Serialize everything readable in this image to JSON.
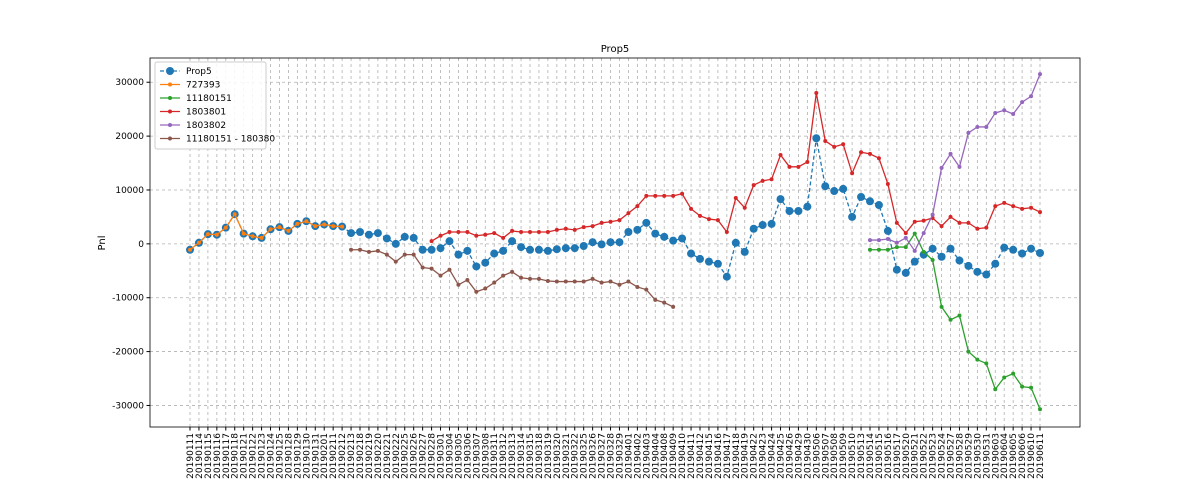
{
  "chart_data": {
    "type": "line",
    "title": "Prop5",
    "y_label": "Pnl",
    "categories": [
      "20190111",
      "20190114",
      "20190115",
      "20190116",
      "20190117",
      "20190118",
      "20190121",
      "20190122",
      "20190123",
      "20190124",
      "20190125",
      "20190128",
      "20190129",
      "20190130",
      "20190131",
      "20190201",
      "20190211",
      "20190212",
      "20190213",
      "20190218",
      "20190219",
      "20190220",
      "20190221",
      "20190222",
      "20190225",
      "20190226",
      "20190227",
      "20190228",
      "20190301",
      "20190304",
      "20190305",
      "20190306",
      "20190307",
      "20190308",
      "20190311",
      "20190312",
      "20190313",
      "20190314",
      "20190315",
      "20190318",
      "20190319",
      "20190320",
      "20190321",
      "20190322",
      "20190325",
      "20190326",
      "20190327",
      "20190328",
      "20190329",
      "20190401",
      "20190402",
      "20190403",
      "20190404",
      "20190408",
      "20190409",
      "20190410",
      "20190411",
      "20190412",
      "20190415",
      "20190416",
      "20190417",
      "20190418",
      "20190419",
      "20190422",
      "20190423",
      "20190424",
      "20190425",
      "20190426",
      "20190429",
      "20190430",
      "20190506",
      "20190507",
      "20190508",
      "20190509",
      "20190510",
      "20190513",
      "20190514",
      "20190515",
      "20190516",
      "20190517",
      "20190520",
      "20190521",
      "20190522",
      "20190523",
      "20190524",
      "20190527",
      "20190528",
      "20190529",
      "20190530",
      "20190531",
      "20190603",
      "20190604",
      "20190605",
      "20190606",
      "20190610",
      "20190611"
    ],
    "series": [
      {
        "name": "Prop5",
        "color": "#1f77b4",
        "style": "dashed",
        "marker": "large",
        "values": [
          -1100,
          200,
          1800,
          1700,
          3000,
          5500,
          1900,
          1400,
          1100,
          2700,
          3100,
          2400,
          3700,
          4200,
          3300,
          3600,
          3300,
          3200,
          2000,
          2200,
          1700,
          2000,
          1000,
          0,
          1300,
          1100,
          -1100,
          -1100,
          -800,
          500,
          -2000,
          -1300,
          -4200,
          -3500,
          -1800,
          -1300,
          500,
          -600,
          -1100,
          -1100,
          -1300,
          -1000,
          -800,
          -800,
          -400,
          300,
          -100,
          300,
          300,
          2200,
          2600,
          3900,
          1900,
          1300,
          600,
          1000,
          -1800,
          -2800,
          -3300,
          -3700,
          -6100,
          200,
          -1500,
          2800,
          3500,
          3700,
          8300,
          6100,
          6100,
          6900,
          19600,
          10700,
          9800,
          10200,
          5000,
          8700,
          7900,
          7200,
          2400,
          -4800,
          -5400,
          -3300,
          -2000,
          -900,
          -2400,
          -900,
          -3100,
          -4100,
          -5200,
          -5700,
          -3700,
          -700,
          -1100,
          -1800,
          -900,
          -1700
        ]
      },
      {
        "name": "727393",
        "color": "#ff7f0e",
        "style": "solid",
        "marker": "small",
        "values": [
          -1100,
          200,
          1800,
          1700,
          3000,
          5500,
          1900,
          1400,
          1100,
          2700,
          3100,
          2400,
          3700,
          4200,
          3300,
          3600,
          3300,
          3200,
          null,
          null,
          null,
          null,
          null,
          null,
          null,
          null,
          null,
          null,
          null,
          null,
          null,
          null,
          null,
          null,
          null,
          null,
          null,
          null,
          null,
          null,
          null,
          null,
          null,
          null,
          null,
          null,
          null,
          null,
          null,
          null,
          null,
          null,
          null,
          null,
          null,
          null,
          null,
          null,
          null,
          null,
          null,
          null,
          null,
          null,
          null,
          null,
          null,
          null,
          null,
          null,
          null,
          null,
          null,
          null,
          null,
          null,
          null,
          null,
          null,
          null,
          null,
          null,
          null,
          null,
          null,
          null,
          null,
          null,
          null,
          null,
          null,
          null,
          null,
          null,
          null,
          null
        ]
      },
      {
        "name": "11180151",
        "color": "#2ca02c",
        "style": "solid",
        "marker": "small",
        "values": [
          null,
          null,
          null,
          null,
          null,
          null,
          null,
          null,
          null,
          null,
          null,
          null,
          null,
          null,
          null,
          null,
          null,
          null,
          null,
          null,
          null,
          null,
          null,
          null,
          null,
          null,
          null,
          null,
          null,
          null,
          null,
          null,
          null,
          null,
          null,
          null,
          null,
          null,
          null,
          null,
          null,
          null,
          null,
          null,
          null,
          null,
          null,
          null,
          null,
          null,
          null,
          null,
          null,
          null,
          null,
          null,
          null,
          null,
          null,
          null,
          null,
          null,
          null,
          null,
          null,
          null,
          null,
          null,
          null,
          null,
          null,
          null,
          null,
          null,
          null,
          null,
          -1100,
          -1100,
          -1100,
          -600,
          -600,
          1900,
          -1500,
          -3000,
          -11700,
          -14100,
          -13300,
          -20000,
          -21500,
          -22200,
          -27000,
          -24800,
          -24100,
          -26500,
          -26700,
          -30700
        ]
      },
      {
        "name": "1803801",
        "color": "#d62728",
        "style": "solid",
        "marker": "small",
        "values": [
          null,
          null,
          null,
          null,
          null,
          null,
          null,
          null,
          null,
          null,
          null,
          null,
          null,
          null,
          null,
          null,
          null,
          null,
          null,
          null,
          null,
          null,
          null,
          null,
          null,
          null,
          null,
          500,
          1500,
          2200,
          2200,
          2200,
          1500,
          1700,
          2000,
          1100,
          2400,
          2200,
          2200,
          2200,
          2200,
          2600,
          2800,
          2600,
          3100,
          3300,
          3900,
          4100,
          4400,
          5700,
          7000,
          8900,
          8900,
          8900,
          8900,
          9300,
          6500,
          5200,
          4600,
          4400,
          2200,
          8500,
          6700,
          10900,
          11700,
          12000,
          16500,
          14300,
          14300,
          15200,
          28000,
          19100,
          18000,
          18500,
          13100,
          17000,
          16700,
          15900,
          11100,
          3900,
          2000,
          4100,
          4300,
          4800,
          3300,
          5000,
          3900,
          3900,
          2800,
          3000,
          7000,
          7600,
          7000,
          6500,
          6700,
          5900
        ]
      },
      {
        "name": "1803802",
        "color": "#9467bd",
        "style": "solid",
        "marker": "small",
        "values": [
          null,
          null,
          null,
          null,
          null,
          null,
          null,
          null,
          null,
          null,
          null,
          null,
          null,
          null,
          null,
          null,
          null,
          null,
          null,
          null,
          null,
          null,
          null,
          null,
          null,
          null,
          null,
          null,
          null,
          null,
          null,
          null,
          null,
          null,
          null,
          null,
          null,
          null,
          null,
          null,
          null,
          null,
          null,
          null,
          null,
          null,
          null,
          null,
          null,
          null,
          null,
          null,
          null,
          null,
          null,
          null,
          null,
          null,
          null,
          null,
          null,
          null,
          null,
          null,
          null,
          null,
          null,
          null,
          null,
          null,
          null,
          null,
          null,
          null,
          null,
          null,
          700,
          700,
          900,
          200,
          1100,
          -1300,
          2000,
          5400,
          14100,
          16700,
          14300,
          20600,
          21700,
          21700,
          24300,
          24800,
          24100,
          26300,
          27400,
          31500
        ]
      },
      {
        "name": "11180151 - 180380",
        "color": "#8c564b",
        "style": "solid",
        "marker": "small",
        "values": [
          null,
          null,
          null,
          null,
          null,
          null,
          null,
          null,
          null,
          null,
          null,
          null,
          null,
          null,
          null,
          null,
          null,
          null,
          -1100,
          -1100,
          -1500,
          -1300,
          -2000,
          -3300,
          -2000,
          -2000,
          -4400,
          -4600,
          -5900,
          -4800,
          -7600,
          -6700,
          -8900,
          -8300,
          -7200,
          -5900,
          -5200,
          -6300,
          -6500,
          -6500,
          -6900,
          -7000,
          -7000,
          -7000,
          -7000,
          -6500,
          -7200,
          -7000,
          -7600,
          -7000,
          -8000,
          -8500,
          -10400,
          -10900,
          -11700,
          null,
          null,
          null,
          null,
          null,
          null,
          null,
          null,
          null,
          null,
          null,
          null,
          null,
          null,
          null,
          null,
          null,
          null,
          null,
          null,
          null,
          null,
          null,
          null,
          null,
          null,
          null,
          null,
          null,
          null,
          null,
          null,
          null,
          null,
          null,
          null,
          null,
          null,
          null,
          null,
          null
        ]
      }
    ],
    "ylim": [
      -34000,
      34500
    ],
    "yticks": [
      -30000,
      -20000,
      -10000,
      0,
      10000,
      20000,
      30000
    ],
    "grid": true,
    "legend": "upper left"
  }
}
